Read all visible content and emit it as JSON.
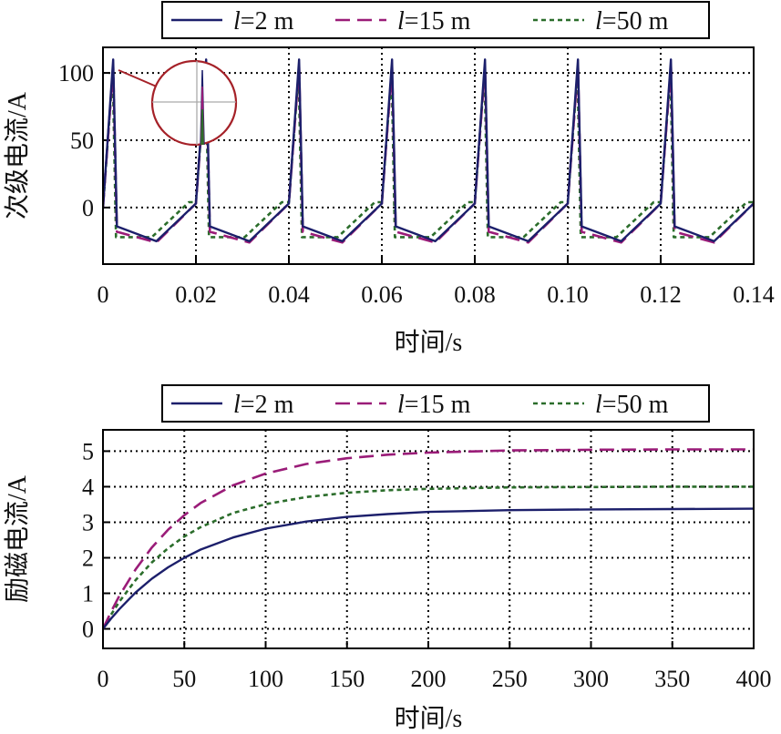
{
  "colors": {
    "l2": "#1c1f6b",
    "l15": "#9a1c78",
    "l50": "#2b6d2b",
    "inset": "#a52128"
  },
  "chart_data": [
    {
      "type": "line",
      "xlabel": "时间/s",
      "ylabel": "次级电流/A",
      "xlim": [
        0,
        0.14
      ],
      "ylim": [
        -42,
        119
      ],
      "xticks": [
        0,
        0.02,
        0.04,
        0.06,
        0.08,
        0.1,
        0.12,
        0.14
      ],
      "xtick_labels": [
        "0",
        "0.02",
        "0.04",
        "0.06",
        "0.08",
        "0.10",
        "0.12",
        "0.14"
      ],
      "yticks": [
        0,
        50,
        100
      ],
      "ytick_labels": [
        "0",
        "50",
        "100"
      ],
      "grid": true,
      "legend_position": "top",
      "series": [
        {
          "name": "l=2 m",
          "style": "solid",
          "color_key": "l2",
          "x": [
            0,
            0.0022,
            0.003,
            0.0115,
            0.02,
            0.0222,
            0.023,
            0.0315,
            0.04,
            0.0422,
            0.043,
            0.0515,
            0.06,
            0.0622,
            0.063,
            0.0715,
            0.08,
            0.0822,
            0.083,
            0.0915,
            0.1,
            0.1022,
            0.103,
            0.1115,
            0.12,
            0.1222,
            0.123,
            0.1315,
            0.14
          ],
          "y": [
            0,
            110,
            -14,
            -25,
            3,
            110,
            -14,
            -25,
            3,
            110,
            -14,
            -25,
            3,
            110,
            -14,
            -25,
            3,
            110,
            -14,
            -25,
            3,
            110,
            -14,
            -25,
            3,
            110,
            -14,
            -25,
            3
          ]
        },
        {
          "name": "l=15 m",
          "style": "dashed",
          "color_key": "l15",
          "x": [
            0,
            0.0022,
            0.003,
            0.0115,
            0.02,
            0.0222,
            0.023,
            0.0315,
            0.04,
            0.0422,
            0.043,
            0.0515,
            0.06,
            0.0622,
            0.063,
            0.0715,
            0.08,
            0.0822,
            0.083,
            0.0915,
            0.1,
            0.1022,
            0.103,
            0.1115,
            0.12,
            0.1222,
            0.123,
            0.1315,
            0.14
          ],
          "y": [
            0,
            105,
            -18,
            -26,
            3,
            105,
            -18,
            -26,
            3,
            105,
            -18,
            -26,
            3,
            105,
            -18,
            -26,
            3,
            105,
            -18,
            -26,
            3,
            105,
            -18,
            -26,
            3,
            105,
            -18,
            -26,
            3
          ]
        },
        {
          "name": "l=50 m",
          "style": "dotted",
          "color_key": "l50",
          "x": [
            0,
            0.0021,
            0.0028,
            0.0105,
            0.0185,
            0.02,
            0.0221,
            0.0228,
            0.0305,
            0.0385,
            0.04,
            0.0421,
            0.0428,
            0.0505,
            0.0585,
            0.06,
            0.0621,
            0.0628,
            0.0705,
            0.0785,
            0.08,
            0.0821,
            0.0828,
            0.0905,
            0.0985,
            0.1,
            0.1021,
            0.1028,
            0.1105,
            0.1185,
            0.12,
            0.1221,
            0.1228,
            0.1305,
            0.1385,
            0.14
          ],
          "y": [
            0,
            100,
            -22,
            -22,
            4,
            4,
            100,
            -22,
            -22,
            4,
            4,
            100,
            -22,
            -22,
            4,
            4,
            100,
            -22,
            -22,
            4,
            4,
            100,
            -22,
            -22,
            4,
            4,
            100,
            -22,
            -22,
            4,
            4,
            100,
            -22,
            -22,
            4,
            4
          ]
        }
      ]
    },
    {
      "type": "line",
      "xlabel": "时间/s",
      "ylabel": "励磁电流/A",
      "xlim": [
        0,
        400
      ],
      "ylim": [
        -0.55,
        5.6
      ],
      "xticks": [
        0,
        50,
        100,
        150,
        200,
        250,
        300,
        350,
        400
      ],
      "xtick_labels": [
        "0",
        "50",
        "100",
        "150",
        "200",
        "250",
        "300",
        "350",
        "400"
      ],
      "yticks": [
        0,
        1,
        2,
        3,
        4,
        5
      ],
      "ytick_labels": [
        "0",
        "1",
        "2",
        "3",
        "4",
        "5"
      ],
      "grid": true,
      "legend_position": "top",
      "series": [
        {
          "name": "l=2 m",
          "style": "solid",
          "color_key": "l2",
          "x": [
            0,
            5,
            10,
            20,
            30,
            40,
            50,
            60,
            80,
            100,
            125,
            150,
            175,
            200,
            250,
            300,
            350,
            400
          ],
          "y": [
            0,
            0.29,
            0.55,
            1.02,
            1.41,
            1.73,
            2.0,
            2.23,
            2.57,
            2.82,
            3.02,
            3.15,
            3.23,
            3.29,
            3.34,
            3.36,
            3.37,
            3.38
          ]
        },
        {
          "name": "l=15 m",
          "style": "dashed",
          "color_key": "l15",
          "x": [
            0,
            5,
            10,
            20,
            30,
            40,
            50,
            60,
            80,
            100,
            125,
            150,
            175,
            200,
            250,
            300,
            350,
            400
          ],
          "y": [
            0,
            0.48,
            0.92,
            1.67,
            2.29,
            2.79,
            3.2,
            3.54,
            4.04,
            4.37,
            4.64,
            4.8,
            4.9,
            4.96,
            5.02,
            5.04,
            5.05,
            5.05
          ]
        },
        {
          "name": "l=50 m",
          "style": "dotted",
          "color_key": "l50",
          "x": [
            0,
            5,
            10,
            20,
            30,
            40,
            50,
            60,
            80,
            100,
            125,
            150,
            175,
            200,
            250,
            300,
            350,
            400
          ],
          "y": [
            0,
            0.4,
            0.76,
            1.37,
            1.87,
            2.27,
            2.6,
            2.86,
            3.26,
            3.51,
            3.71,
            3.83,
            3.9,
            3.94,
            3.98,
            3.99,
            4.0,
            4.0
          ]
        }
      ]
    }
  ]
}
